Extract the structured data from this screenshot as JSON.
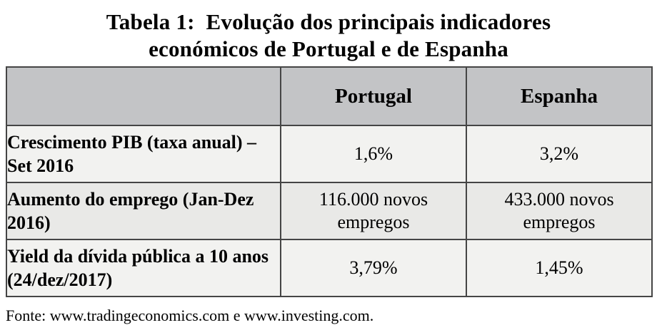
{
  "title": {
    "line1": "Tabela 1:  Evolução dos principais indicadores",
    "line2": "económicos de Portugal e de Espanha"
  },
  "table": {
    "columns": {
      "label": "",
      "portugal": "Portugal",
      "espanha": "Espanha"
    },
    "rows": [
      {
        "label": "Crescimento PIB (taxa anual) – Set 2016",
        "portugal": "1,6%",
        "espanha": "3,2%"
      },
      {
        "label": "Aumento do emprego (Jan-Dez 2016)",
        "portugal": "116.000 novos empregos",
        "espanha": "433.000 novos empregos"
      },
      {
        "label": "Yield da dívida pública a 10 anos (24/dez/2017)",
        "portugal": "3,79%",
        "espanha": "1,45%"
      }
    ]
  },
  "footer": {
    "source": "Fonte: www.tradingeconomics.com e www.investing.com."
  },
  "colors": {
    "header_bg": "#c3c4c6",
    "row_light_bg": "#f2f2f0",
    "row_dark_bg": "#e9e9e7",
    "border": "#454545",
    "text": "#000000",
    "page_bg": "#ffffff"
  }
}
